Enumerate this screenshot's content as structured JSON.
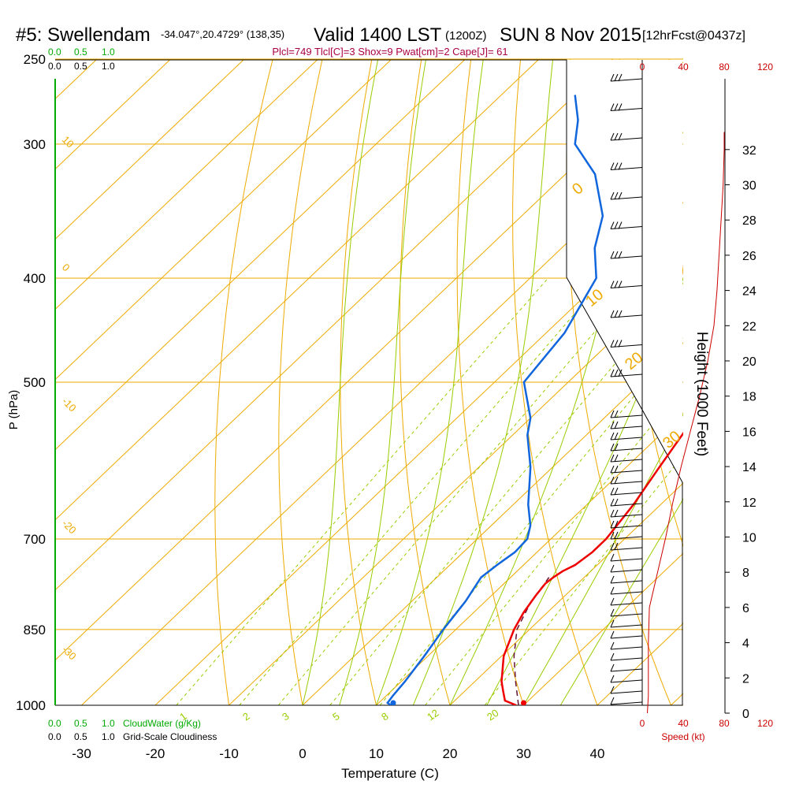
{
  "header": {
    "station": "#5: Swellendam",
    "coords": "-34.047°,20.4729° (138,35)",
    "valid": "Valid 1400 LST",
    "zulu": "(1200Z)",
    "date": "SUN 8 Nov 2015",
    "fcst": "[12hrFcst@0437z]"
  },
  "indices": "Plcl=749 Tlcl[C]=3 Shox=9 Pwat[cm]=2 Cape[J]= 61",
  "cloudwater_scale": {
    "ticks": [
      "0.0",
      "0.5",
      "1.0"
    ],
    "label": "CloudWater (g/Kg)"
  },
  "cloudiness_scale": {
    "ticks": [
      "0.0",
      "0.5",
      "1.0"
    ],
    "label": "Grid-Scale Cloudiness"
  },
  "speed_scale": {
    "ticks": [
      "0",
      "40",
      "80",
      "120"
    ],
    "label": "Speed (kt)"
  },
  "colors": {
    "temperature": "#ee0000",
    "dewpoint": "#1166dd",
    "parcel": "#661133",
    "isotherm": "#eeaa00",
    "mixing_ratio": "#99cc00",
    "cloudwater": "#00aa00",
    "indices": "#aa0044",
    "speed": "#cc0000"
  },
  "chart_data": {
    "type": "line",
    "subtype": "skew-T log-P sounding",
    "xlabel": "Temperature (C)",
    "ylabel": "P (hPa)",
    "y2label": "Height (1000 Feet)",
    "x_ticks": [
      -30,
      -20,
      -10,
      0,
      10,
      20,
      30,
      40
    ],
    "p_ticks": [
      250,
      300,
      400,
      500,
      700,
      850,
      1000
    ],
    "height_ticks": [
      0,
      2,
      4,
      6,
      8,
      10,
      12,
      14,
      16,
      18,
      20,
      22,
      24,
      26,
      28,
      30,
      32
    ],
    "isotherm_labels": [
      "10",
      "0",
      "-10",
      "-20",
      "-30"
    ],
    "right_isotherm_labels": [
      "0",
      "10",
      "20",
      "30"
    ],
    "mixing_ratio_labels": [
      "1",
      "2",
      "3",
      "5",
      "8",
      "12",
      "20"
    ],
    "series": [
      {
        "name": "Temperature",
        "points": [
          [
            1000,
            29.0
          ],
          [
            990,
            26.8
          ],
          [
            970,
            25.2
          ],
          [
            950,
            23.6
          ],
          [
            900,
            20.3
          ],
          [
            850,
            17.9
          ],
          [
            820,
            16.8
          ],
          [
            790,
            16.0
          ],
          [
            770,
            15.6
          ],
          [
            760,
            15.8
          ],
          [
            750,
            16.2
          ],
          [
            740,
            17.0
          ],
          [
            720,
            17.5
          ],
          [
            700,
            17.5
          ],
          [
            670,
            16.8
          ],
          [
            650,
            16.3
          ],
          [
            600,
            14.5
          ],
          [
            550,
            12.6
          ],
          [
            500,
            10.6
          ],
          [
            450,
            7.8
          ],
          [
            400,
            4.6
          ],
          [
            350,
            0.0
          ],
          [
            300,
            -7.5
          ],
          [
            270,
            -13.0
          ]
        ]
      },
      {
        "name": "Dewpoint",
        "points": [
          [
            1000,
            12.0
          ],
          [
            995,
            11.2
          ],
          [
            980,
            10.9
          ],
          [
            950,
            10.5
          ],
          [
            900,
            9.5
          ],
          [
            850,
            8.3
          ],
          [
            800,
            7.3
          ],
          [
            760,
            6.0
          ],
          [
            740,
            6.4
          ],
          [
            720,
            7.0
          ],
          [
            700,
            6.8
          ],
          [
            680,
            5.3
          ],
          [
            650,
            2.0
          ],
          [
            600,
            -3.0
          ],
          [
            560,
            -8.0
          ],
          [
            540,
            -10.0
          ],
          [
            500,
            -16.0
          ],
          [
            450,
            -17.5
          ],
          [
            400,
            -21.0
          ],
          [
            375,
            -25.5
          ],
          [
            350,
            -29.0
          ],
          [
            320,
            -36.0
          ],
          [
            300,
            -43.0
          ],
          [
            285,
            -46.0
          ],
          [
            270,
            -50.0
          ]
        ]
      },
      {
        "name": "Parcel",
        "points": [
          [
            1000,
            29.3
          ],
          [
            950,
            25.5
          ],
          [
            900,
            21.7
          ],
          [
            850,
            18.3
          ],
          [
            800,
            16.2
          ],
          [
            770,
            15.5
          ],
          [
            760,
            15.2
          ]
        ]
      }
    ],
    "surface_temperature": 30.0,
    "surface_dewpoint": 12.3,
    "wind_speed_profile": [
      [
        0,
        5
      ],
      [
        1000,
        6
      ],
      [
        2000,
        6
      ],
      [
        4000,
        6
      ],
      [
        6000,
        7
      ],
      [
        8000,
        15
      ],
      [
        10000,
        23
      ],
      [
        12000,
        30
      ],
      [
        14000,
        38
      ],
      [
        16000,
        47
      ],
      [
        18000,
        56
      ],
      [
        20000,
        64
      ],
      [
        22000,
        70
      ],
      [
        24000,
        73
      ],
      [
        26000,
        75
      ],
      [
        28000,
        77
      ],
      [
        30000,
        79
      ],
      [
        32000,
        80
      ],
      [
        33000,
        80
      ]
    ]
  }
}
